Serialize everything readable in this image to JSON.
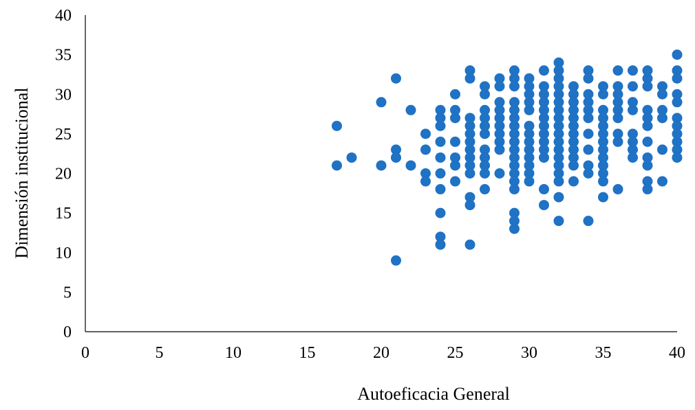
{
  "chart_data": {
    "type": "scatter",
    "xlabel": "Autoeficacia General",
    "ylabel": "Dimensión institucional",
    "xlim": [
      0,
      40
    ],
    "ylim": [
      0,
      40
    ],
    "xticks": [
      "0",
      "5",
      "10",
      "15",
      "20",
      "25",
      "30",
      "35",
      "40"
    ],
    "yticks": [
      "0",
      "5",
      "10",
      "15",
      "20",
      "25",
      "30",
      "35",
      "40"
    ],
    "grid": false,
    "marker_color": "#1f72c4",
    "points": [
      [
        17,
        26
      ],
      [
        17,
        21
      ],
      [
        18,
        22
      ],
      [
        20,
        29
      ],
      [
        20,
        21
      ],
      [
        21,
        32
      ],
      [
        21,
        23
      ],
      [
        21,
        22
      ],
      [
        21,
        9
      ],
      [
        22,
        28
      ],
      [
        22,
        21
      ],
      [
        23,
        25
      ],
      [
        23,
        23
      ],
      [
        23,
        20
      ],
      [
        23,
        19
      ],
      [
        24,
        28
      ],
      [
        24,
        27
      ],
      [
        24,
        26
      ],
      [
        24,
        24
      ],
      [
        24,
        22
      ],
      [
        24,
        20
      ],
      [
        24,
        18
      ],
      [
        24,
        15
      ],
      [
        24,
        12
      ],
      [
        24,
        11
      ],
      [
        25,
        30
      ],
      [
        25,
        28
      ],
      [
        25,
        27
      ],
      [
        25,
        24
      ],
      [
        25,
        22
      ],
      [
        25,
        21
      ],
      [
        25,
        19
      ],
      [
        26,
        33
      ],
      [
        26,
        32
      ],
      [
        26,
        27
      ],
      [
        26,
        26
      ],
      [
        26,
        25
      ],
      [
        26,
        24
      ],
      [
        26,
        23
      ],
      [
        26,
        22
      ],
      [
        26,
        21
      ],
      [
        26,
        20
      ],
      [
        26,
        17
      ],
      [
        26,
        16
      ],
      [
        26,
        11
      ],
      [
        27,
        31
      ],
      [
        27,
        30
      ],
      [
        27,
        28
      ],
      [
        27,
        27
      ],
      [
        27,
        26
      ],
      [
        27,
        25
      ],
      [
        27,
        23
      ],
      [
        27,
        22
      ],
      [
        27,
        21
      ],
      [
        27,
        20
      ],
      [
        27,
        18
      ],
      [
        28,
        32
      ],
      [
        28,
        31
      ],
      [
        28,
        29
      ],
      [
        28,
        28
      ],
      [
        28,
        27
      ],
      [
        28,
        26
      ],
      [
        28,
        25
      ],
      [
        28,
        24
      ],
      [
        28,
        23
      ],
      [
        28,
        20
      ],
      [
        29,
        33
      ],
      [
        29,
        32
      ],
      [
        29,
        31
      ],
      [
        29,
        29
      ],
      [
        29,
        28
      ],
      [
        29,
        27
      ],
      [
        29,
        26
      ],
      [
        29,
        25
      ],
      [
        29,
        24
      ],
      [
        29,
        23
      ],
      [
        29,
        22
      ],
      [
        29,
        21
      ],
      [
        29,
        20
      ],
      [
        29,
        19
      ],
      [
        29,
        18
      ],
      [
        29,
        15
      ],
      [
        29,
        14
      ],
      [
        29,
        13
      ],
      [
        30,
        32
      ],
      [
        30,
        31
      ],
      [
        30,
        30
      ],
      [
        30,
        29
      ],
      [
        30,
        28
      ],
      [
        30,
        26
      ],
      [
        30,
        25
      ],
      [
        30,
        24
      ],
      [
        30,
        23
      ],
      [
        30,
        22
      ],
      [
        30,
        21
      ],
      [
        30,
        20
      ],
      [
        30,
        19
      ],
      [
        31,
        33
      ],
      [
        31,
        31
      ],
      [
        31,
        30
      ],
      [
        31,
        29
      ],
      [
        31,
        28
      ],
      [
        31,
        27
      ],
      [
        31,
        26
      ],
      [
        31,
        25
      ],
      [
        31,
        24
      ],
      [
        31,
        23
      ],
      [
        31,
        22
      ],
      [
        31,
        18
      ],
      [
        31,
        16
      ],
      [
        32,
        34
      ],
      [
        32,
        33
      ],
      [
        32,
        32
      ],
      [
        32,
        31
      ],
      [
        32,
        30
      ],
      [
        32,
        29
      ],
      [
        32,
        28
      ],
      [
        32,
        27
      ],
      [
        32,
        26
      ],
      [
        32,
        25
      ],
      [
        32,
        24
      ],
      [
        32,
        23
      ],
      [
        32,
        22
      ],
      [
        32,
        21
      ],
      [
        32,
        20
      ],
      [
        32,
        19
      ],
      [
        32,
        17
      ],
      [
        32,
        14
      ],
      [
        33,
        31
      ],
      [
        33,
        30
      ],
      [
        33,
        29
      ],
      [
        33,
        28
      ],
      [
        33,
        27
      ],
      [
        33,
        26
      ],
      [
        33,
        25
      ],
      [
        33,
        24
      ],
      [
        33,
        23
      ],
      [
        33,
        22
      ],
      [
        33,
        21
      ],
      [
        33,
        19
      ],
      [
        34,
        33
      ],
      [
        34,
        32
      ],
      [
        34,
        30
      ],
      [
        34,
        29
      ],
      [
        34,
        28
      ],
      [
        34,
        27
      ],
      [
        34,
        25
      ],
      [
        34,
        23
      ],
      [
        34,
        21
      ],
      [
        34,
        20
      ],
      [
        34,
        14
      ],
      [
        35,
        31
      ],
      [
        35,
        30
      ],
      [
        35,
        28
      ],
      [
        35,
        27
      ],
      [
        35,
        26
      ],
      [
        35,
        25
      ],
      [
        35,
        24
      ],
      [
        35,
        23
      ],
      [
        35,
        22
      ],
      [
        35,
        21
      ],
      [
        35,
        20
      ],
      [
        35,
        19
      ],
      [
        35,
        17
      ],
      [
        36,
        33
      ],
      [
        36,
        31
      ],
      [
        36,
        30
      ],
      [
        36,
        29
      ],
      [
        36,
        28
      ],
      [
        36,
        27
      ],
      [
        36,
        25
      ],
      [
        36,
        24
      ],
      [
        36,
        18
      ],
      [
        37,
        33
      ],
      [
        37,
        31
      ],
      [
        37,
        29
      ],
      [
        37,
        28
      ],
      [
        37,
        25
      ],
      [
        37,
        24
      ],
      [
        37,
        23
      ],
      [
        37,
        22
      ],
      [
        38,
        33
      ],
      [
        38,
        32
      ],
      [
        38,
        31
      ],
      [
        38,
        28
      ],
      [
        38,
        27
      ],
      [
        38,
        26
      ],
      [
        38,
        24
      ],
      [
        38,
        22
      ],
      [
        38,
        21
      ],
      [
        38,
        19
      ],
      [
        38,
        18
      ],
      [
        39,
        31
      ],
      [
        39,
        30
      ],
      [
        39,
        28
      ],
      [
        39,
        27
      ],
      [
        39,
        23
      ],
      [
        39,
        19
      ],
      [
        40,
        35
      ],
      [
        40,
        33
      ],
      [
        40,
        32
      ],
      [
        40,
        30
      ],
      [
        40,
        29
      ],
      [
        40,
        27
      ],
      [
        40,
        26
      ],
      [
        40,
        25
      ],
      [
        40,
        24
      ],
      [
        40,
        23
      ],
      [
        40,
        22
      ]
    ]
  }
}
